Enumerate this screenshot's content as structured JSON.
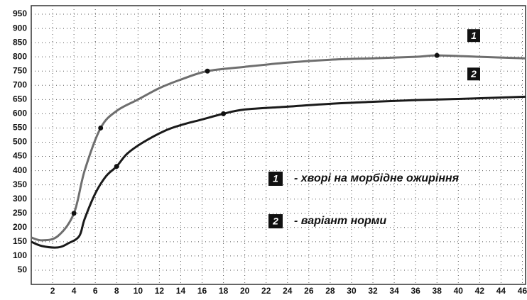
{
  "chart_data": {
    "type": "line",
    "x": [
      0,
      1,
      2.5,
      4,
      5,
      6.5,
      8,
      10,
      12,
      14,
      16.5,
      20,
      24,
      28,
      32,
      36,
      38,
      42,
      46.3
    ],
    "xlim": [
      0,
      46.3
    ],
    "ylim": [
      0,
      980
    ],
    "xticks": [
      2,
      4,
      6,
      8,
      10,
      12,
      14,
      16,
      18,
      20,
      22,
      24,
      26,
      28,
      30,
      32,
      34,
      36,
      38,
      40,
      42,
      44,
      46
    ],
    "yticks": [
      50,
      100,
      150,
      200,
      250,
      300,
      350,
      400,
      450,
      500,
      550,
      600,
      650,
      700,
      750,
      800,
      850,
      900,
      950
    ],
    "grid": true,
    "series": [
      {
        "label": "1",
        "name": "- хворі на морбідне ожиріння",
        "color": "#6e6e6e",
        "x": [
          0,
          1,
          2.5,
          4,
          5,
          6.5,
          8,
          10,
          12,
          14,
          16.5,
          20,
          24,
          28,
          32,
          36,
          38,
          42,
          46.3
        ],
        "values": [
          165,
          155,
          170,
          250,
          400,
          550,
          610,
          650,
          690,
          720,
          750,
          765,
          780,
          790,
          795,
          800,
          805,
          800,
          795
        ],
        "markers": [
          3,
          5,
          10,
          16
        ]
      },
      {
        "label": "2",
        "name": "- варіант норми",
        "color": "#1a1a1a",
        "x": [
          0,
          1,
          2.5,
          3.5,
          4.5,
          5,
          6,
          7,
          8,
          9,
          10.5,
          12.5,
          14,
          16,
          18,
          20,
          24,
          28,
          32,
          36,
          40,
          44,
          46.3
        ],
        "values": [
          150,
          135,
          130,
          145,
          170,
          230,
          320,
          380,
          415,
          460,
          500,
          540,
          560,
          580,
          600,
          615,
          625,
          635,
          642,
          648,
          652,
          657,
          660
        ],
        "markers": [
          8,
          14
        ]
      }
    ]
  }
}
